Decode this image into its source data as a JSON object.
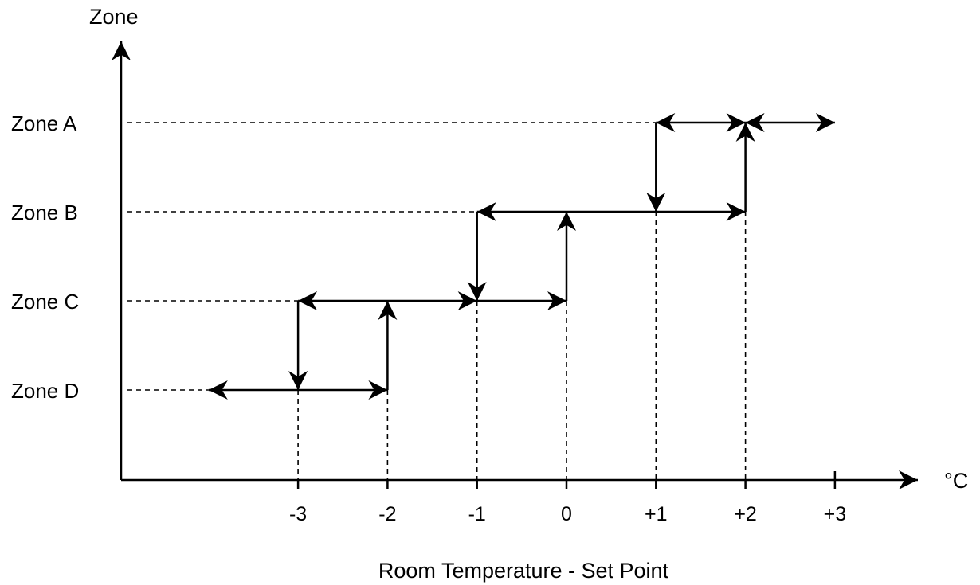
{
  "y_axis_label": "Zone",
  "x_axis_unit": "°C",
  "x_axis_title": "Room Temperature - Set Point",
  "zones": [
    {
      "key": "A",
      "label": "Zone A"
    },
    {
      "key": "B",
      "label": "Zone B"
    },
    {
      "key": "C",
      "label": "Zone C"
    },
    {
      "key": "D",
      "label": "Zone D"
    }
  ],
  "x_ticks": [
    {
      "value": -3,
      "label": "-3"
    },
    {
      "value": -2,
      "label": "-2"
    },
    {
      "value": -1,
      "label": "-1"
    },
    {
      "value": 0,
      "label": "0"
    },
    {
      "value": 1,
      "label": "+1"
    },
    {
      "value": 2,
      "label": "+2"
    },
    {
      "value": 3,
      "label": "+3"
    }
  ],
  "horizontal_arrows": [
    {
      "zone": "D",
      "from": -4,
      "to": -2,
      "heads": "both"
    },
    {
      "zone": "C",
      "from": -3,
      "to": -1,
      "heads": "both"
    },
    {
      "zone": "C",
      "from": -1,
      "to": 0,
      "heads": "end"
    },
    {
      "zone": "B",
      "from": -1,
      "to": 2,
      "heads": "both"
    },
    {
      "zone": "A",
      "from": 1,
      "to": 2,
      "heads": "both"
    },
    {
      "zone": "A",
      "from": 2,
      "to": 3,
      "heads": "both"
    }
  ],
  "vertical_arrows": [
    {
      "x": -3,
      "from_zone": "C",
      "to_zone": "D"
    },
    {
      "x": -2,
      "from_zone": "D",
      "to_zone": "C"
    },
    {
      "x": -1,
      "from_zone": "B",
      "to_zone": "C"
    },
    {
      "x": 0,
      "from_zone": "C",
      "to_zone": "B"
    },
    {
      "x": 1,
      "from_zone": "A",
      "to_zone": "B"
    },
    {
      "x": 2,
      "from_zone": "B",
      "to_zone": "A"
    }
  ]
}
